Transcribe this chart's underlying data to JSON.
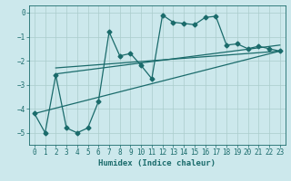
{
  "xlabel": "Humidex (Indice chaleur)",
  "xlim": [
    -0.5,
    23.5
  ],
  "ylim": [
    -5.5,
    0.3
  ],
  "yticks": [
    0,
    -1,
    -2,
    -3,
    -4,
    -5
  ],
  "xticks": [
    0,
    1,
    2,
    3,
    4,
    5,
    6,
    7,
    8,
    9,
    10,
    11,
    12,
    13,
    14,
    15,
    16,
    17,
    18,
    19,
    20,
    21,
    22,
    23
  ],
  "bg_color": "#cce8ec",
  "grid_color": "#aacccc",
  "line_color": "#1a6b6b",
  "line1_x": [
    0,
    1,
    2,
    3,
    4,
    5,
    6,
    7,
    8,
    9,
    10,
    11,
    12,
    13,
    14,
    15,
    16,
    17,
    18,
    19,
    20,
    21,
    22,
    23
  ],
  "line1_y": [
    -4.2,
    -5.0,
    -2.6,
    -4.8,
    -5.0,
    -4.8,
    -3.7,
    -0.8,
    -1.8,
    -1.7,
    -2.2,
    -2.75,
    -0.1,
    -0.4,
    -0.45,
    -0.5,
    -0.2,
    -0.15,
    -1.35,
    -1.3,
    -1.5,
    -1.4,
    -1.5,
    -1.6
  ],
  "line2_x": [
    2,
    23
  ],
  "line2_y": [
    -2.55,
    -1.35
  ],
  "line3_x": [
    0,
    23
  ],
  "line3_y": [
    -4.2,
    -1.6
  ],
  "line4_x": [
    2,
    23
  ],
  "line4_y": [
    -2.3,
    -1.6
  ]
}
